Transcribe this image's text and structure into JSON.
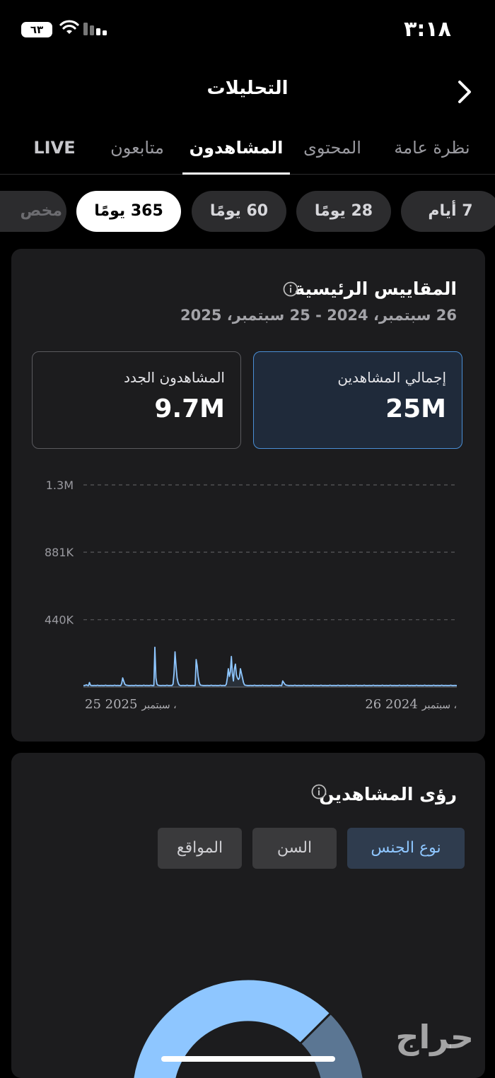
{
  "status_bar": {
    "time": "٣:١٨",
    "battery": "٦٣"
  },
  "header": {
    "title": "التحليلات"
  },
  "tabs": [
    {
      "label": "نظرة عامة"
    },
    {
      "label": "المحتوى"
    },
    {
      "label": "المشاهدون"
    },
    {
      "label": "متابعون"
    },
    {
      "label": "LIVE"
    }
  ],
  "active_tab": "المشاهدون",
  "date_pills": [
    {
      "label": "7 أيام"
    },
    {
      "label": "28 يومًا"
    },
    {
      "label": "60 يومًا"
    },
    {
      "label": "365 يومًا"
    },
    {
      "label": "مخص"
    }
  ],
  "active_pill": "365 يومًا",
  "key_metrics": {
    "title": "المقاييس الرئيسية",
    "date_range": "26 سبتمبر، 2024 - 25 سبتمبر، 2025",
    "metrics": [
      {
        "label": "إجمالي المشاهدين",
        "value": "25M"
      },
      {
        "label": "المشاهدون الجدد",
        "value": "9.7M"
      }
    ]
  },
  "chart_data": {
    "type": "line",
    "y_ticks": [
      "1.3M",
      "881K",
      "440K"
    ],
    "x_start_label": {
      "prefix": "سبتمبر ،",
      "date": "26 2024"
    },
    "x_end_label": {
      "prefix": "سبتمبر ،",
      "date": "25 2025"
    },
    "ylim": [
      0,
      1320000
    ],
    "grid": true,
    "color": "#8ec6ff",
    "values": [
      10000,
      10000,
      12000,
      15000,
      11000,
      10000,
      30000,
      12000,
      10000,
      10000,
      10000,
      11000,
      10000,
      10000,
      12000,
      10000,
      10000,
      10000,
      11000,
      10000,
      10000,
      10000,
      12000,
      10000,
      10000,
      10000,
      10000,
      11000,
      10000,
      10000,
      10000,
      12000,
      10000,
      10000,
      11000,
      10000,
      10000,
      10000,
      25000,
      60000,
      40000,
      20000,
      14000,
      12000,
      11000,
      10000,
      10000,
      10000,
      11000,
      10000,
      10000,
      10000,
      12000,
      10000,
      10000,
      10000,
      11000,
      10000,
      10000,
      10000,
      12000,
      10000,
      10000,
      11000,
      10000,
      10000,
      10000,
      12000,
      10000,
      10000,
      10000,
      260000,
      60000,
      20000,
      12000,
      11000,
      10000,
      10000,
      10000,
      11000,
      10000,
      10000,
      10000,
      12000,
      10000,
      10000,
      10000,
      11000,
      10000,
      20000,
      90000,
      230000,
      140000,
      60000,
      30000,
      15000,
      11000,
      10000,
      10000,
      11000,
      10000,
      10000,
      10000,
      12000,
      10000,
      10000,
      10000,
      10000,
      11000,
      10000,
      10000,
      10000,
      180000,
      140000,
      70000,
      30000,
      14000,
      12000,
      11000,
      10000,
      10000,
      10000,
      10000,
      11000,
      10000,
      10000,
      10000,
      12000,
      10000,
      10000,
      10000,
      11000,
      10000,
      10000,
      10000,
      10000,
      12000,
      10000,
      10000,
      11000,
      10000,
      10000,
      20000,
      60000,
      120000,
      70000,
      100000,
      200000,
      90000,
      40000,
      120000,
      150000,
      80000,
      60000,
      50000,
      60000,
      120000,
      90000,
      60000,
      30000,
      15000,
      12000,
      11000,
      10000,
      10000,
      10000,
      11000,
      10000,
      10000,
      10000,
      12000,
      10000,
      10000,
      10000,
      10000,
      11000,
      10000,
      10000,
      12000,
      10000,
      10000,
      10000,
      11000,
      10000,
      10000,
      10000,
      10000,
      12000,
      10000,
      10000,
      11000,
      10000,
      10000,
      10000,
      10000,
      12000,
      10000,
      10000,
      40000,
      30000,
      20000,
      14000,
      12000,
      11000,
      10000,
      10000,
      11000,
      10000,
      10000,
      10000,
      12000,
      10000,
      10000,
      10000,
      11000,
      10000,
      10000,
      10000,
      10000,
      12000,
      10000,
      10000,
      10000,
      11000,
      10000,
      10000,
      10000,
      10000,
      12000,
      10000,
      10000,
      11000,
      10000,
      10000,
      10000,
      10000,
      12000,
      10000,
      10000,
      10000,
      11000,
      10000,
      10000,
      10000,
      10000,
      12000,
      10000,
      10000,
      10000,
      11000,
      10000,
      10000,
      10000,
      12000,
      10000,
      10000,
      10000,
      10000,
      11000,
      10000,
      10000,
      10000,
      12000,
      10000,
      10000,
      10000,
      11000,
      10000,
      10000,
      10000,
      10000,
      12000,
      10000,
      10000,
      10000,
      11000,
      10000,
      10000,
      10000,
      12000,
      10000,
      10000,
      10000,
      10000,
      11000,
      10000,
      10000,
      10000,
      12000,
      10000,
      10000,
      10000,
      11000,
      10000,
      10000,
      10000,
      10000,
      12000,
      10000,
      10000,
      10000,
      11000,
      10000,
      10000,
      10000,
      12000,
      10000,
      10000,
      10000,
      11000,
      10000,
      10000,
      10000,
      10000,
      12000,
      10000,
      10000,
      10000,
      11000,
      10000,
      10000,
      10000,
      12000,
      10000,
      10000,
      10000,
      11000,
      10000,
      10000,
      10000,
      10000,
      12000,
      10000,
      10000,
      10000,
      11000,
      10000,
      10000,
      10000,
      12000,
      10000,
      10000,
      10000,
      11000,
      10000,
      10000,
      10000,
      10000,
      12000,
      10000,
      10000,
      10000,
      11000,
      10000,
      10000,
      10000,
      12000,
      10000,
      10000,
      10000,
      11000,
      10000,
      10000,
      10000,
      10000,
      12000,
      10000,
      10000,
      10000,
      11000,
      10000,
      10000
    ]
  },
  "insights": {
    "title": "رؤى المشاهدين",
    "segments": [
      {
        "label": "نوع الجنس"
      },
      {
        "label": "السن"
      },
      {
        "label": "المواقع"
      }
    ],
    "active_segment": "نوع الجنس",
    "gender_split": {
      "primary_fraction": 0.75,
      "primary_color": "#8ec6ff",
      "secondary_color": "#5b7693"
    }
  },
  "watermark": "حراج"
}
